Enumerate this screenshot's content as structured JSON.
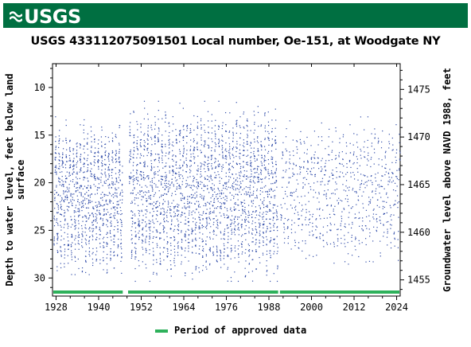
{
  "header": {
    "logo_text": "USGS"
  },
  "chart_data": {
    "type": "scatter",
    "title": "USGS 433112075091501 Local number, Oe-151, at Woodgate NY",
    "ylabel_left": "Depth to water level, feet below land surface",
    "ylabel_left_lines": [
      "Depth to water level, feet below land",
      "surface"
    ],
    "ylabel_right": "Groundwater level above NAVD 1988, feet",
    "x_ticks": [
      "1928",
      "1940",
      "1952",
      "1964",
      "1976",
      "1988",
      "2000",
      "2012",
      "2024"
    ],
    "x_tick_values": [
      1928,
      1940,
      1952,
      1964,
      1976,
      1988,
      2000,
      2012,
      2024
    ],
    "xlim": [
      1927,
      2025
    ],
    "y_left_ticks": [
      "10",
      "15",
      "20",
      "25",
      "30"
    ],
    "y_left_tick_values": [
      10,
      15,
      20,
      25,
      30
    ],
    "ylim_left": [
      7.5,
      31.9
    ],
    "left_axis_inverted": true,
    "y_right_ticks": [
      "1475",
      "1470",
      "1465",
      "1460",
      "1455"
    ],
    "y_right_tick_values": [
      1475,
      1470,
      1465,
      1460,
      1455
    ],
    "right_axis_offset": 1485.2,
    "series": [
      {
        "name": "Period of approved data",
        "color": "#2eb15b",
        "periods": [
          [
            1927,
            1946.8
          ],
          [
            1948.3,
            1990.6
          ],
          [
            1991.1,
            2025
          ]
        ]
      }
    ],
    "point_color": "#2f4ba8",
    "data_segments": [
      {
        "start": 1927.3,
        "end": 1946.6,
        "min_depth": 13.0,
        "max_depth": 29.6
      },
      {
        "start": 1948.5,
        "end": 1990.4,
        "min_depth": 11.4,
        "max_depth": 30.3
      },
      {
        "start": 1991.2,
        "end": 2024.9,
        "min_depth": 13.0,
        "max_depth": 28.5
      }
    ],
    "grid": true,
    "legend_position": "bottom-center"
  },
  "legend": {
    "label": "Period of approved data"
  }
}
